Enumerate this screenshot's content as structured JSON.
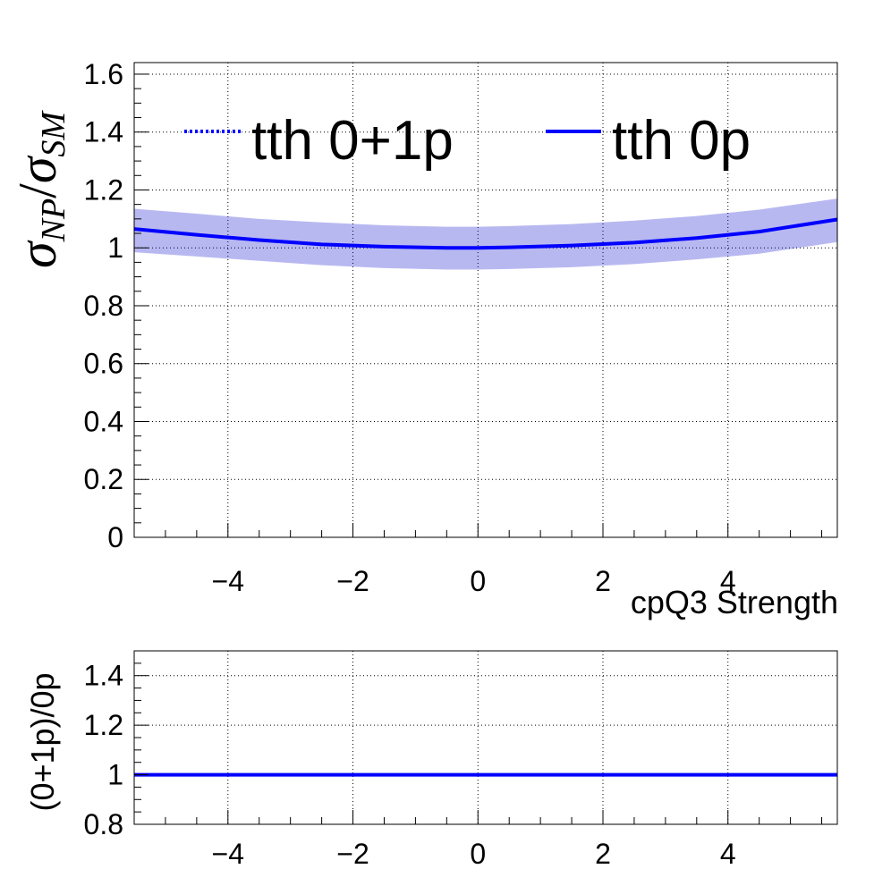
{
  "chart_data": [
    {
      "type": "line",
      "panel": "main",
      "xlabel": "cpQ3 Strength",
      "ylabel_main": "σ",
      "ylabel_sub1": "NP",
      "ylabel_slash": "/",
      "ylabel_main2": "σ",
      "ylabel_sub2": "SM",
      "xlim": [
        -5.5,
        5.75
      ],
      "ylim": [
        0,
        1.64
      ],
      "xticks": [
        -4,
        -2,
        0,
        2,
        4
      ],
      "xtick_labels": [
        "−4",
        "−2",
        "0",
        "2",
        "4"
      ],
      "yticks": [
        0,
        0.2,
        0.4,
        0.6,
        0.8,
        1,
        1.2,
        1.4,
        1.6
      ],
      "ytick_labels": [
        "0",
        "0.2",
        "0.4",
        "0.6",
        "0.8",
        "1",
        "1.2",
        "1.4",
        "1.6"
      ],
      "grid": true,
      "legend_placement": "top",
      "series": [
        {
          "name": "tth 0+1p",
          "style": "dotted",
          "color": "#0000ff",
          "x": [
            -5.5,
            -4.5,
            -3.5,
            -2.5,
            -1.5,
            -0.5,
            0,
            0.5,
            1.5,
            2.5,
            3.5,
            4.5,
            5.75
          ],
          "y": [
            1.065,
            1.045,
            1.027,
            1.012,
            1.004,
            1.0,
            1.0,
            1.002,
            1.008,
            1.018,
            1.034,
            1.056,
            1.098
          ]
        },
        {
          "name": "tth 0p",
          "style": "solid",
          "color": "#0000ff",
          "x": [
            -5.5,
            -4.5,
            -3.5,
            -2.5,
            -1.5,
            -0.5,
            0,
            0.5,
            1.5,
            2.5,
            3.5,
            4.5,
            5.75
          ],
          "y": [
            1.065,
            1.045,
            1.027,
            1.012,
            1.004,
            1.0,
            1.0,
            1.002,
            1.008,
            1.018,
            1.034,
            1.056,
            1.098
          ]
        }
      ],
      "band": {
        "color": "#0000cc",
        "x": [
          -5.5,
          -4.5,
          -3.5,
          -2.5,
          -1.5,
          -0.5,
          0,
          0.5,
          1.5,
          2.5,
          3.5,
          4.5,
          5.75
        ],
        "upper": [
          1.135,
          1.118,
          1.1,
          1.088,
          1.078,
          1.073,
          1.073,
          1.075,
          1.082,
          1.094,
          1.11,
          1.132,
          1.17
        ],
        "lower": [
          0.985,
          0.97,
          0.955,
          0.94,
          0.93,
          0.925,
          0.925,
          0.927,
          0.933,
          0.944,
          0.96,
          0.98,
          1.02
        ]
      }
    },
    {
      "type": "line",
      "panel": "ratio",
      "ylabel": "(0+1p)/0p",
      "xlim": [
        -5.5,
        5.75
      ],
      "ylim": [
        0.8,
        1.5
      ],
      "xticks": [
        -4,
        -2,
        0,
        2,
        4
      ],
      "xtick_labels": [
        "−4",
        "−2",
        "0",
        "2",
        "4"
      ],
      "yticks": [
        0.8,
        1,
        1.2,
        1.4
      ],
      "ytick_labels": [
        "0.8",
        "1",
        "1.2",
        "1.4"
      ],
      "grid": true,
      "series": [
        {
          "name": "",
          "style": "solid",
          "color": "#0000ff",
          "x": [
            -5.5,
            -2,
            -0.3,
            4,
            5.75
          ],
          "y": [
            1.0,
            1.0,
            1.0,
            1.0,
            1.0
          ]
        }
      ]
    }
  ]
}
